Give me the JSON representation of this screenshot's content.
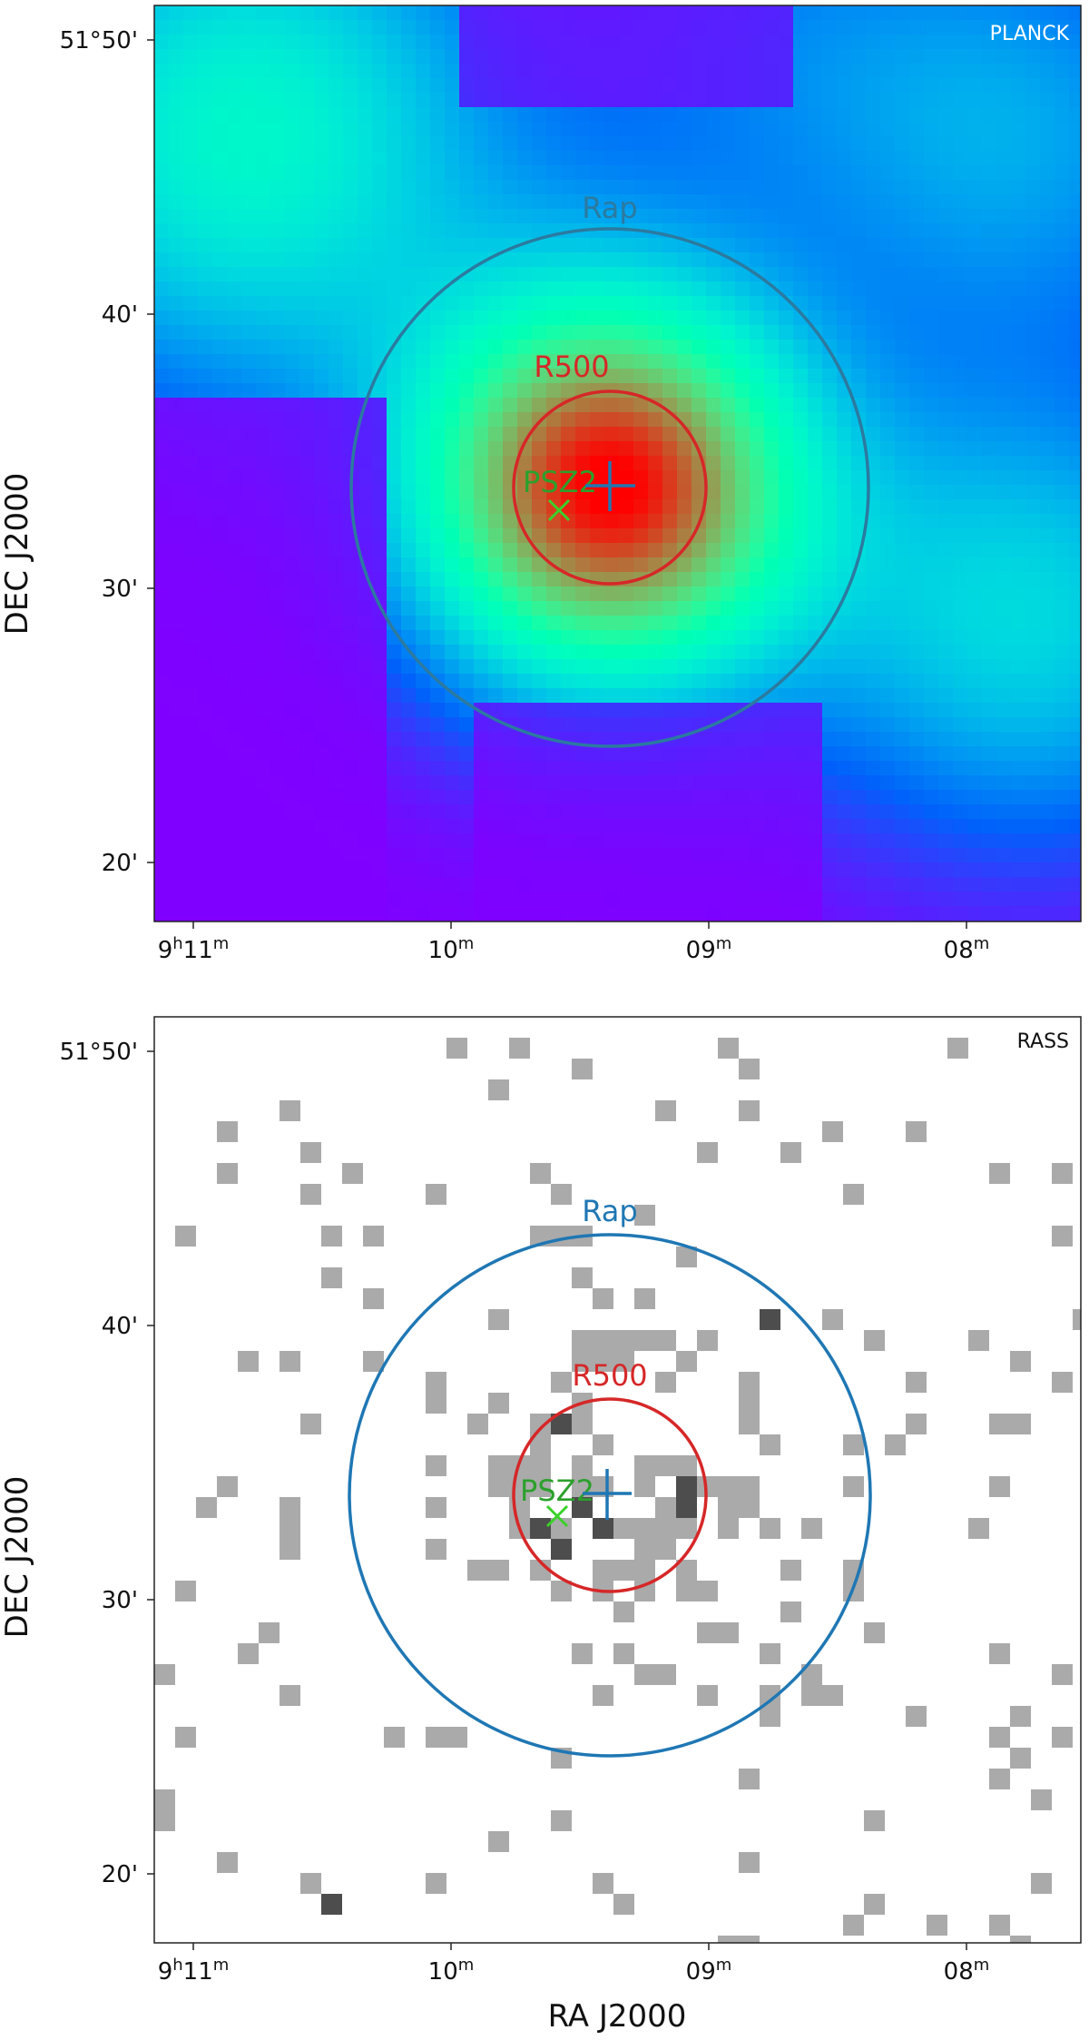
{
  "panels": [
    {
      "id": "planck",
      "tag": "PLANCK",
      "ylabel": "DEC J2000",
      "xlabel": "",
      "labels": {
        "rap": "Rap",
        "r500": "R500",
        "psz2": "PSZ2"
      },
      "colors": {
        "rap": "#2b7aa0",
        "r500": "#d62728",
        "psz2": "#2ca02c",
        "x_marker": "#3ad12a",
        "plus_marker": "#1f77b4",
        "tag": "#ffffff",
        "background": "#7f00ff"
      }
    },
    {
      "id": "rass",
      "tag": "RASS",
      "ylabel": "DEC J2000",
      "xlabel": "RA J2000",
      "labels": {
        "rap": "Rap",
        "r500": "R500",
        "psz2": "PSZ2"
      },
      "colors": {
        "rap": "#1f77b4",
        "r500": "#d62728",
        "psz2": "#2ca02c",
        "x_marker": "#3ad12a",
        "plus_marker": "#1f77b4",
        "tag": "#111111",
        "light_pixel": "#aaaaaa",
        "dark_pixel": "#4d4d4d"
      }
    }
  ],
  "ticks": {
    "y": [
      "51°50'",
      "40'",
      "30'",
      "20'"
    ],
    "x": [
      {
        "base": "9",
        "sup1": "h",
        "mid": "11",
        "sup2": "m"
      },
      {
        "base": "",
        "sup1": "",
        "mid": "10",
        "sup2": "m"
      },
      {
        "base": "",
        "sup1": "",
        "mid": "09",
        "sup2": "m"
      },
      {
        "base": "",
        "sup1": "",
        "mid": "08",
        "sup2": "m"
      }
    ]
  }
}
